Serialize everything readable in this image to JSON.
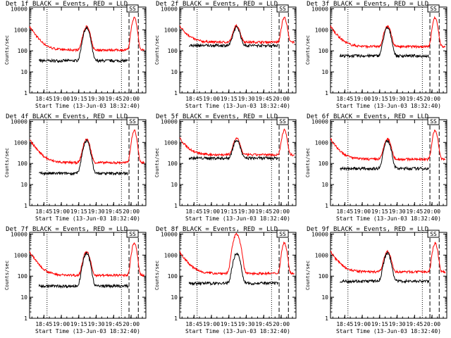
{
  "panel_layout": {
    "columns": 3,
    "rows": 3
  },
  "series_colors": {
    "events": "#000000",
    "lld": "#ff0000"
  },
  "shared": {
    "ylabel": "Counts/sec",
    "xlabel": "Start Time (13-Jun-03 18:32:40)",
    "x_tick_labels": [
      "18:45",
      "19:00",
      "19:15",
      "19:30",
      "19:45",
      "20:00"
    ],
    "x_tick_values_min": [
      12.33,
      27.33,
      42.33,
      57.33,
      72.33,
      87.33
    ],
    "y_tick_labels": [
      "1",
      "10",
      "100",
      "1000",
      "10000"
    ],
    "y_tick_values": [
      1,
      10,
      100,
      1000,
      10000
    ],
    "xlim_min": [
      0,
      100
    ],
    "ylim": [
      1,
      12000
    ],
    "y_scale": "log",
    "marker_ss": "SS",
    "dotted_lines_min": [
      15,
      79
    ],
    "dashed_lines_min": [
      85.5,
      93.5
    ]
  },
  "chart_data": [
    {
      "type": "line",
      "title": "Det 1f BLACK = Events, RED = LLD"
    },
    {
      "type": "line",
      "title": "Det 2f BLACK = Events, RED = LLD"
    },
    {
      "type": "line",
      "title": "Det 3f BLACK = Events, RED = LLD"
    },
    {
      "type": "line",
      "title": "Det 4f BLACK = Events, RED = LLD"
    },
    {
      "type": "line",
      "title": "Det 5f BLACK = Events, RED = LLD"
    },
    {
      "type": "line",
      "title": "Det 6f BLACK = Events, RED = LLD"
    },
    {
      "type": "line",
      "title": "Det 7f BLACK = Events, RED = LLD"
    },
    {
      "type": "line",
      "title": "Det 8f BLACK = Events, RED = LLD"
    },
    {
      "type": "line",
      "title": "Det 9f BLACK = Events, RED = LLD"
    }
  ]
}
